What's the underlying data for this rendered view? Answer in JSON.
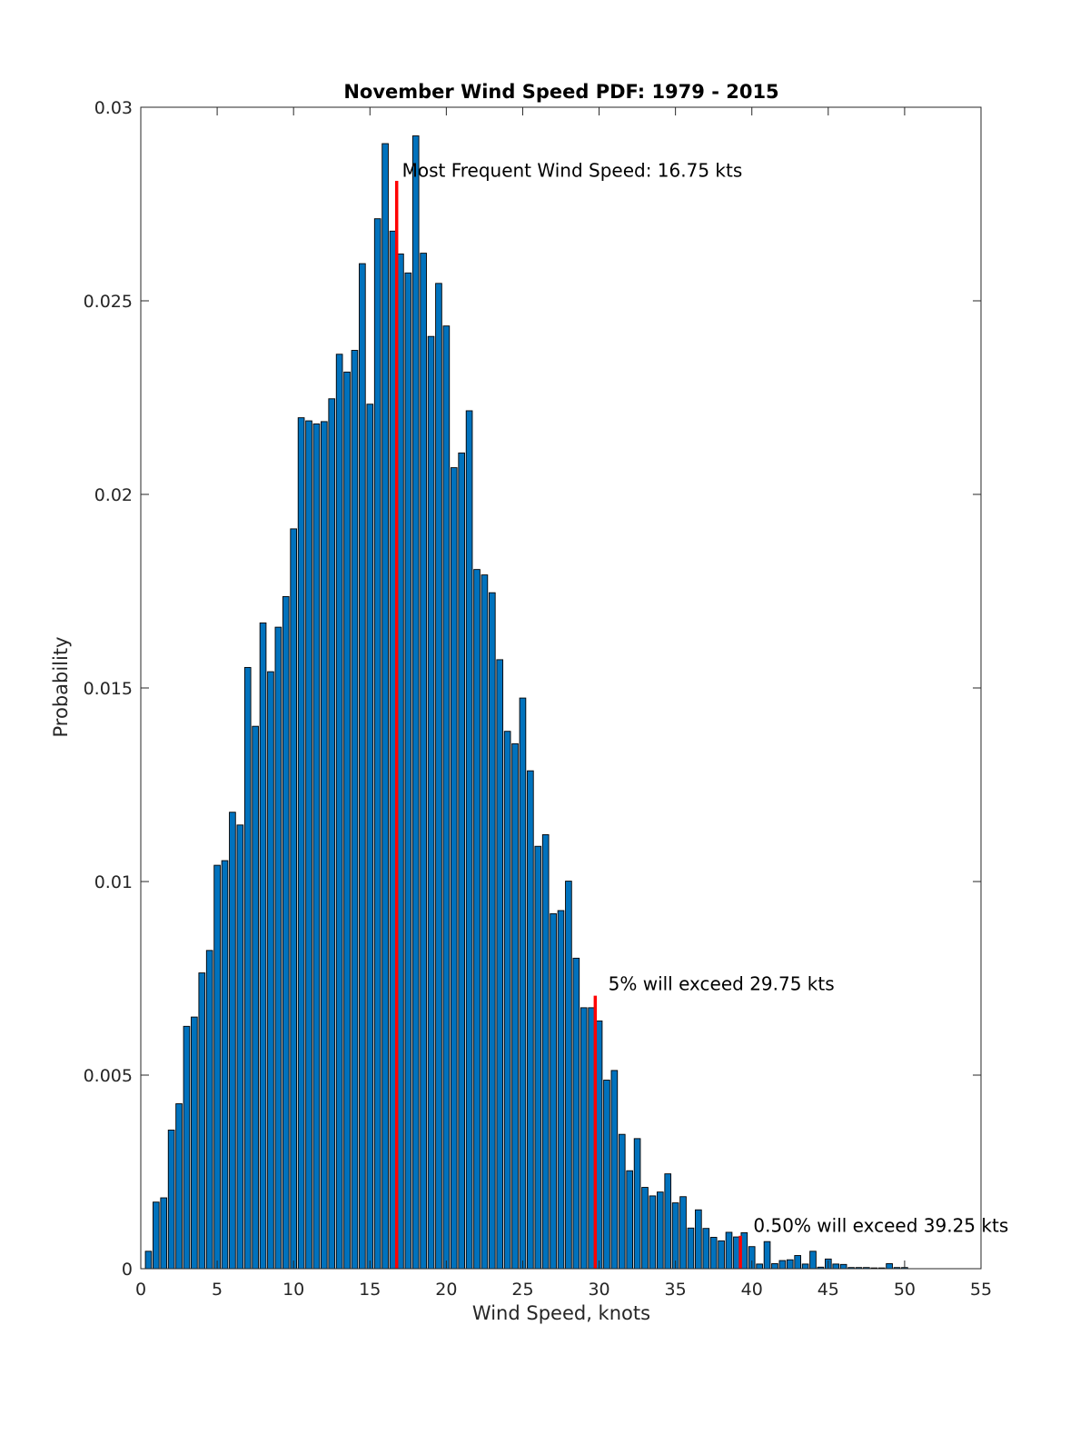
{
  "chart_data": {
    "type": "bar",
    "title": "November Wind Speed PDF: 1979 - 2015",
    "xlabel": "Wind Speed, knots",
    "ylabel": "Probability",
    "xlim": [
      0,
      55
    ],
    "ylim": [
      0,
      0.03
    ],
    "xticks": [
      0,
      5,
      10,
      15,
      20,
      25,
      30,
      35,
      40,
      45,
      50,
      55
    ],
    "yticks": [
      0,
      0.005,
      0.01,
      0.015,
      0.02,
      0.025,
      0.03
    ],
    "xtick_labels": [
      "0",
      "5",
      "10",
      "15",
      "20",
      "25",
      "30",
      "35",
      "40",
      "45",
      "50",
      "55"
    ],
    "ytick_labels": [
      "0",
      "0.005",
      "0.01",
      "0.015",
      "0.02",
      "0.025",
      "0.03"
    ],
    "bar_color": "#0072bd",
    "marker_color": "#ff0000",
    "bin_width": 0.5,
    "x": [
      0.5,
      1,
      1.5,
      2,
      2.5,
      3,
      3.5,
      4,
      4.5,
      5,
      5.5,
      6,
      6.5,
      7,
      7.5,
      8,
      8.5,
      9,
      9.5,
      10,
      10.5,
      11,
      11.5,
      12,
      12.5,
      13,
      13.5,
      14,
      14.5,
      15,
      15.5,
      16,
      16.5,
      17,
      17.5,
      18,
      18.5,
      19,
      19.5,
      20,
      20.5,
      21,
      21.5,
      22,
      22.5,
      23,
      23.5,
      24,
      24.5,
      25,
      25.5,
      26,
      26.5,
      27,
      27.5,
      28,
      28.5,
      29,
      29.5,
      30,
      30.5,
      31,
      31.5,
      32,
      32.5,
      33,
      33.5,
      34,
      34.5,
      35,
      35.5,
      36,
      36.5,
      37,
      37.5,
      38,
      38.5,
      39,
      39.5,
      40,
      40.5,
      41,
      41.5,
      42,
      42.5,
      43,
      43.5,
      44,
      44.5,
      45,
      45.5,
      46,
      46.5,
      47,
      47.5,
      48,
      48.5,
      49,
      49.5,
      50
    ],
    "values": [
      0.00045,
      0.00172,
      0.00183,
      0.00358,
      0.00426,
      0.00626,
      0.0065,
      0.00764,
      0.00822,
      0.01042,
      0.01054,
      0.01179,
      0.01146,
      0.01553,
      0.01401,
      0.01668,
      0.01542,
      0.01657,
      0.01736,
      0.01911,
      0.02198,
      0.0219,
      0.02182,
      0.02188,
      0.02247,
      0.02362,
      0.02316,
      0.02372,
      0.02596,
      0.02233,
      0.02712,
      0.02906,
      0.0268,
      0.02621,
      0.02572,
      0.02926,
      0.02623,
      0.02408,
      0.02545,
      0.02435,
      0.02069,
      0.02107,
      0.02216,
      0.01806,
      0.01792,
      0.01746,
      0.01573,
      0.01388,
      0.01356,
      0.01474,
      0.01286,
      0.01091,
      0.01121,
      0.00917,
      0.00925,
      0.01001,
      0.00802,
      0.00674,
      0.00674,
      0.0064,
      0.00487,
      0.00512,
      0.00347,
      0.00253,
      0.00336,
      0.0021,
      0.00188,
      0.00198,
      0.00245,
      0.0017,
      0.00186,
      0.00105,
      0.00152,
      0.00104,
      0.00081,
      0.00072,
      0.00094,
      0.00082,
      0.00093,
      0.00057,
      0.00012,
      0.0007,
      0.00013,
      0.00021,
      0.00023,
      0.00034,
      0.00012,
      0.00045,
      4e-05,
      0.00025,
      0.00012,
      0.00011,
      3e-05,
      3e-05,
      3e-05,
      2e-05,
      2e-05,
      0.00013,
      3e-05,
      3e-05
    ],
    "markers": [
      {
        "x": 16.75,
        "y": 0.0281,
        "label": "Most Frequent Wind Speed: 16.75 kts",
        "label_x": 17.1,
        "label_y": 0.0282
      },
      {
        "x": 29.75,
        "y": 0.00705,
        "label": "5% will exceed 29.75 kts",
        "label_x": 30.6,
        "label_y": 0.0072
      },
      {
        "x": 39.25,
        "y": 0.00085,
        "label": "0.50% will exceed 39.25 kts",
        "label_x": 40.1,
        "label_y": 0.00095
      }
    ]
  }
}
